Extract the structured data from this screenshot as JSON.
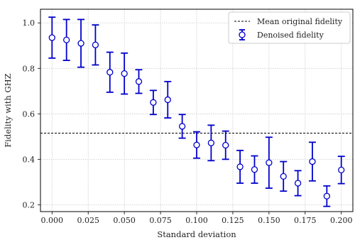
{
  "chart_data": {
    "type": "scatter",
    "xlabel": "Standard deviation",
    "ylabel": "Fidelity with GHZ",
    "xlim": [
      -0.008,
      0.208
    ],
    "ylim": [
      0.17,
      1.06
    ],
    "xticks": [
      "0.000",
      "0.025",
      "0.050",
      "0.075",
      "0.100",
      "0.125",
      "0.150",
      "0.175",
      "0.200"
    ],
    "yticks": [
      "0.2",
      "0.4",
      "0.6",
      "0.8",
      "1.0"
    ],
    "grid": true,
    "legend_position": "top-right",
    "reference_line": {
      "name": "Mean original fidelity",
      "y": 0.515,
      "style": "dashed",
      "color": "#000000"
    },
    "series": [
      {
        "name": "Denoised fidelity",
        "color": "#0000cc",
        "x": [
          0.0,
          0.01,
          0.02,
          0.03,
          0.04,
          0.05,
          0.06,
          0.07,
          0.08,
          0.09,
          0.1,
          0.11,
          0.12,
          0.13,
          0.14,
          0.15,
          0.16,
          0.17,
          0.18,
          0.19,
          0.2
        ],
        "y": [
          0.935,
          0.925,
          0.91,
          0.903,
          0.783,
          0.777,
          0.742,
          0.65,
          0.662,
          0.545,
          0.463,
          0.472,
          0.462,
          0.367,
          0.355,
          0.385,
          0.325,
          0.295,
          0.39,
          0.238,
          0.353
        ],
        "error": [
          0.09,
          0.09,
          0.105,
          0.088,
          0.088,
          0.09,
          0.052,
          0.053,
          0.08,
          0.052,
          0.058,
          0.078,
          0.062,
          0.072,
          0.06,
          0.112,
          0.065,
          0.055,
          0.085,
          0.045,
          0.06
        ]
      }
    ]
  }
}
